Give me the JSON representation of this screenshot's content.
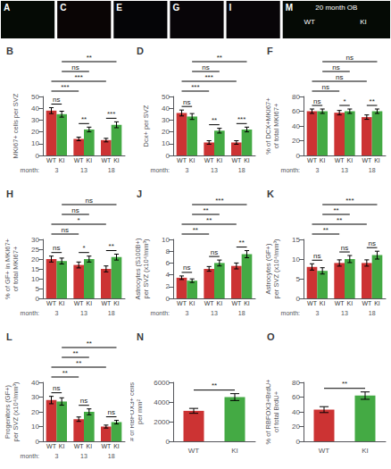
{
  "chart_data": [
    {
      "type": "image",
      "title": "A",
      "color": "#050a05"
    },
    {
      "type": "bar",
      "title": "B",
      "ylabel": "MKI67+ cells per SVZ",
      "xlabel": "month:",
      "categories": [
        "3",
        "13",
        "18"
      ],
      "series": [
        {
          "name": "WT",
          "color": "#cc3333",
          "values": [
            38,
            14,
            13
          ],
          "errors": [
            2.5,
            1.5,
            1.5
          ]
        },
        {
          "name": "KI",
          "color": "#44aa44",
          "values": [
            35,
            22,
            26
          ],
          "errors": [
            2.5,
            2.0,
            2.5
          ]
        }
      ],
      "ylim": [
        0,
        50
      ],
      "yticks": [
        0,
        10,
        20,
        30,
        40,
        50
      ],
      "grid": false,
      "annotations": [
        {
          "text": "ns",
          "series": [
            "WT",
            "KI"
          ],
          "categories": [
            "3",
            "3"
          ]
        },
        {
          "text": "**",
          "series": [
            "WT",
            "KI"
          ],
          "categories": [
            "13",
            "13"
          ]
        },
        {
          "text": "***",
          "series": [
            "WT",
            "KI"
          ],
          "categories": [
            "18",
            "18"
          ]
        },
        {
          "text": "***",
          "series": [
            "WT",
            "WT"
          ],
          "categories": [
            "3",
            "13"
          ]
        },
        {
          "text": "***",
          "series": [
            "WT",
            "WT"
          ],
          "categories": [
            "3",
            "18"
          ]
        },
        {
          "text": "ns",
          "series": [
            "KI",
            "KI"
          ],
          "categories": [
            "3",
            "13"
          ]
        },
        {
          "text": "**",
          "series": [
            "KI",
            "KI"
          ],
          "categories": [
            "3",
            "18"
          ]
        }
      ]
    },
    {
      "type": "image",
      "title": "C",
      "color": "#0a0505"
    },
    {
      "type": "bar",
      "title": "D",
      "ylabel": "Dcx+ per SVZ",
      "xlabel": "month:",
      "categories": [
        "3",
        "13",
        "18"
      ],
      "series": [
        {
          "name": "WT",
          "color": "#cc3333",
          "values": [
            36,
            11,
            11
          ],
          "errors": [
            2.5,
            1.5,
            1.5
          ]
        },
        {
          "name": "KI",
          "color": "#44aa44",
          "values": [
            33,
            21,
            22
          ],
          "errors": [
            2.5,
            2.0,
            2.0
          ]
        }
      ],
      "ylim": [
        0,
        50
      ],
      "yticks": [
        0,
        10,
        20,
        30,
        40,
        50
      ],
      "grid": false,
      "annotations": [
        {
          "text": "ns",
          "series": [
            "WT",
            "KI"
          ],
          "categories": [
            "3",
            "3"
          ]
        },
        {
          "text": "**",
          "series": [
            "WT",
            "KI"
          ],
          "categories": [
            "13",
            "13"
          ]
        },
        {
          "text": "***",
          "series": [
            "WT",
            "KI"
          ],
          "categories": [
            "18",
            "18"
          ]
        },
        {
          "text": "***",
          "series": [
            "WT",
            "WT"
          ],
          "categories": [
            "3",
            "13"
          ]
        },
        {
          "text": "***",
          "series": [
            "WT",
            "WT"
          ],
          "categories": [
            "3",
            "18"
          ]
        },
        {
          "text": "ns",
          "series": [
            "KI",
            "KI"
          ],
          "categories": [
            "3",
            "13"
          ]
        },
        {
          "text": "**",
          "series": [
            "KI",
            "KI"
          ],
          "categories": [
            "3",
            "18"
          ]
        }
      ]
    },
    {
      "type": "image",
      "title": "E",
      "color": "#050507"
    },
    {
      "type": "bar",
      "title": "F",
      "ylabel": "% of DCX+MKI67+\nof total MKI67+",
      "xlabel": "month:",
      "categories": [
        "3",
        "13",
        "18"
      ],
      "series": [
        {
          "name": "WT",
          "color": "#cc3333",
          "values": [
            60,
            58,
            52
          ],
          "errors": [
            3,
            3,
            3
          ]
        },
        {
          "name": "KI",
          "color": "#44aa44",
          "values": [
            60,
            60,
            60
          ],
          "errors": [
            3,
            3,
            3
          ]
        }
      ],
      "ylim": [
        0,
        80
      ],
      "yticks": [
        0,
        20,
        40,
        60,
        80
      ],
      "grid": false,
      "annotations": [
        {
          "text": "ns",
          "series": [
            "WT",
            "KI"
          ],
          "categories": [
            "3",
            "3"
          ]
        },
        {
          "text": "*",
          "series": [
            "WT",
            "KI"
          ],
          "categories": [
            "13",
            "13"
          ]
        },
        {
          "text": "**",
          "series": [
            "WT",
            "KI"
          ],
          "categories": [
            "18",
            "18"
          ]
        },
        {
          "text": "ns",
          "series": [
            "WT",
            "WT"
          ],
          "categories": [
            "3",
            "13"
          ]
        },
        {
          "text": "ns",
          "series": [
            "WT",
            "WT"
          ],
          "categories": [
            "3",
            "18"
          ]
        },
        {
          "text": "ns",
          "series": [
            "KI",
            "KI"
          ],
          "categories": [
            "3",
            "13"
          ]
        },
        {
          "text": "ns",
          "series": [
            "KI",
            "KI"
          ],
          "categories": [
            "3",
            "18"
          ]
        }
      ]
    },
    {
      "type": "image",
      "title": "G",
      "color": "#080508"
    },
    {
      "type": "bar",
      "title": "H",
      "ylabel": "% of GF+ in MKI67+\nof total MKI67+",
      "xlabel": "month:",
      "categories": [
        "3",
        "13",
        "18"
      ],
      "series": [
        {
          "name": "WT",
          "color": "#cc3333",
          "values": [
            20,
            17,
            15
          ],
          "errors": [
            1.5,
            1.5,
            1.5
          ]
        },
        {
          "name": "KI",
          "color": "#44aa44",
          "values": [
            19,
            20,
            21
          ],
          "errors": [
            1.5,
            1.5,
            1.5
          ]
        }
      ],
      "ylim": [
        0,
        30
      ],
      "yticks": [
        0,
        5,
        10,
        15,
        20,
        25,
        30
      ],
      "grid": false,
      "annotations": [
        {
          "text": "ns",
          "series": [
            "WT",
            "KI"
          ],
          "categories": [
            "3",
            "3"
          ]
        },
        {
          "text": "*",
          "series": [
            "WT",
            "KI"
          ],
          "categories": [
            "13",
            "13"
          ]
        },
        {
          "text": "**",
          "series": [
            "WT",
            "KI"
          ],
          "categories": [
            "18",
            "18"
          ]
        },
        {
          "text": "ns",
          "series": [
            "WT",
            "WT"
          ],
          "categories": [
            "3",
            "13"
          ]
        },
        {
          "text": "*",
          "series": [
            "WT",
            "WT"
          ],
          "categories": [
            "3",
            "18"
          ]
        },
        {
          "text": "ns",
          "series": [
            "KI",
            "KI"
          ],
          "categories": [
            "3",
            "13"
          ]
        },
        {
          "text": "ns",
          "series": [
            "KI",
            "KI"
          ],
          "categories": [
            "3",
            "18"
          ]
        }
      ]
    },
    {
      "type": "image",
      "title": "I",
      "color": "#080508"
    },
    {
      "type": "bar",
      "title": "J",
      "ylabel": "Astrocytes (S100B+)\nper SVZ (x10⁴/mm³)",
      "xlabel": "month:",
      "categories": [
        "3",
        "13",
        "18"
      ],
      "series": [
        {
          "name": "WT",
          "color": "#cc3333",
          "values": [
            3.5,
            5.0,
            5.5
          ],
          "errors": [
            0.3,
            0.4,
            0.5
          ]
        },
        {
          "name": "KI",
          "color": "#44aa44",
          "values": [
            3.0,
            6.0,
            7.5
          ],
          "errors": [
            0.3,
            0.5,
            0.6
          ]
        }
      ],
      "ylim": [
        0,
        10
      ],
      "yticks": [
        0,
        2,
        4,
        6,
        8,
        10
      ],
      "grid": false,
      "annotations": [
        {
          "text": "ns",
          "series": [
            "WT",
            "KI"
          ],
          "categories": [
            "3",
            "3"
          ]
        },
        {
          "text": "ns",
          "series": [
            "WT",
            "KI"
          ],
          "categories": [
            "13",
            "13"
          ]
        },
        {
          "text": "**",
          "series": [
            "WT",
            "KI"
          ],
          "categories": [
            "18",
            "18"
          ]
        },
        {
          "text": "**",
          "series": [
            "WT",
            "WT"
          ],
          "categories": [
            "3",
            "13"
          ]
        },
        {
          "text": "**",
          "series": [
            "WT",
            "WT"
          ],
          "categories": [
            "3",
            "18"
          ]
        },
        {
          "text": "**",
          "series": [
            "KI",
            "KI"
          ],
          "categories": [
            "3",
            "13"
          ]
        },
        {
          "text": "***",
          "series": [
            "KI",
            "KI"
          ],
          "categories": [
            "3",
            "18"
          ]
        }
      ]
    },
    {
      "type": "bar",
      "title": "K",
      "ylabel": "Astrocytes (GF+)\nper SVZ (x10⁴/mm³)",
      "xlabel": "month:",
      "categories": [
        "3",
        "13",
        "18"
      ],
      "series": [
        {
          "name": "WT",
          "color": "#cc3333",
          "values": [
            8,
            9,
            9
          ],
          "errors": [
            0.8,
            0.8,
            0.8
          ]
        },
        {
          "name": "KI",
          "color": "#44aa44",
          "values": [
            7,
            10,
            11
          ],
          "errors": [
            0.8,
            0.9,
            1.0
          ]
        }
      ],
      "ylim": [
        0,
        15
      ],
      "yticks": [
        0,
        5,
        10,
        15
      ],
      "grid": false,
      "annotations": [
        {
          "text": "ns",
          "series": [
            "WT",
            "KI"
          ],
          "categories": [
            "3",
            "3"
          ]
        },
        {
          "text": "ns",
          "series": [
            "WT",
            "KI"
          ],
          "categories": [
            "13",
            "13"
          ]
        },
        {
          "text": "ns",
          "series": [
            "WT",
            "KI"
          ],
          "categories": [
            "18",
            "18"
          ]
        },
        {
          "text": "**",
          "series": [
            "WT",
            "WT"
          ],
          "categories": [
            "3",
            "13"
          ]
        },
        {
          "text": "**",
          "series": [
            "WT",
            "WT"
          ],
          "categories": [
            "3",
            "18"
          ]
        },
        {
          "text": "**",
          "series": [
            "KI",
            "KI"
          ],
          "categories": [
            "3",
            "13"
          ]
        },
        {
          "text": "***",
          "series": [
            "KI",
            "KI"
          ],
          "categories": [
            "3",
            "18"
          ]
        }
      ]
    },
    {
      "type": "bar",
      "title": "L",
      "ylabel": "Progenitors (GF+)\nper SVZ (x10⁴/mm³)",
      "xlabel": "month:",
      "categories": [
        "3",
        "13",
        "18"
      ],
      "series": [
        {
          "name": "WT",
          "color": "#cc3333",
          "values": [
            28,
            15,
            10
          ],
          "errors": [
            2.5,
            1.5,
            1.0
          ]
        },
        {
          "name": "KI",
          "color": "#44aa44",
          "values": [
            27,
            20,
            13
          ],
          "errors": [
            2.5,
            2.0,
            1.2
          ]
        }
      ],
      "ylim": [
        0,
        40
      ],
      "yticks": [
        0,
        10,
        20,
        30,
        40
      ],
      "grid": false,
      "annotations": [
        {
          "text": "ns",
          "series": [
            "WT",
            "KI"
          ],
          "categories": [
            "3",
            "3"
          ]
        },
        {
          "text": "ns",
          "series": [
            "WT",
            "KI"
          ],
          "categories": [
            "13",
            "13"
          ]
        },
        {
          "text": "ns",
          "series": [
            "WT",
            "KI"
          ],
          "categories": [
            "18",
            "18"
          ]
        },
        {
          "text": "**",
          "series": [
            "WT",
            "WT"
          ],
          "categories": [
            "3",
            "13"
          ]
        },
        {
          "text": "**",
          "series": [
            "WT",
            "WT"
          ],
          "categories": [
            "3",
            "18"
          ]
        },
        {
          "text": "**",
          "series": [
            "KI",
            "KI"
          ],
          "categories": [
            "3",
            "13"
          ]
        },
        {
          "text": "**",
          "series": [
            "KI",
            "KI"
          ],
          "categories": [
            "3",
            "18"
          ]
        }
      ]
    },
    {
      "type": "image",
      "title": "M",
      "color": "#050a05",
      "annotations": [
        "20 month OB",
        "WT",
        "KI"
      ]
    },
    {
      "type": "bar",
      "title": "N",
      "ylabel": "# of RBFOX3+ cells\nper mm²",
      "categories": [
        "WT",
        "KI"
      ],
      "values": [
        3100,
        4500
      ],
      "errors": [
        250,
        350
      ],
      "colors": [
        "#cc3333",
        "#44aa44"
      ],
      "ylim": [
        0,
        6000
      ],
      "yticks": [
        0,
        2000,
        4000,
        6000
      ],
      "grid": false,
      "annotations": [
        {
          "text": "**",
          "categories": [
            "WT",
            "KI"
          ]
        }
      ]
    },
    {
      "type": "bar",
      "title": "O",
      "ylabel": "% of RBFOX3+BrdU+\nof total BrdU+",
      "categories": [
        "WT",
        "KI"
      ],
      "values": [
        43,
        62
      ],
      "errors": [
        4,
        5
      ],
      "colors": [
        "#cc3333",
        "#44aa44"
      ],
      "ylim": [
        0,
        80
      ],
      "yticks": [
        0,
        20,
        40,
        60,
        80
      ],
      "grid": false,
      "annotations": [
        {
          "text": "**",
          "categories": [
            "WT",
            "KI"
          ]
        }
      ]
    }
  ]
}
